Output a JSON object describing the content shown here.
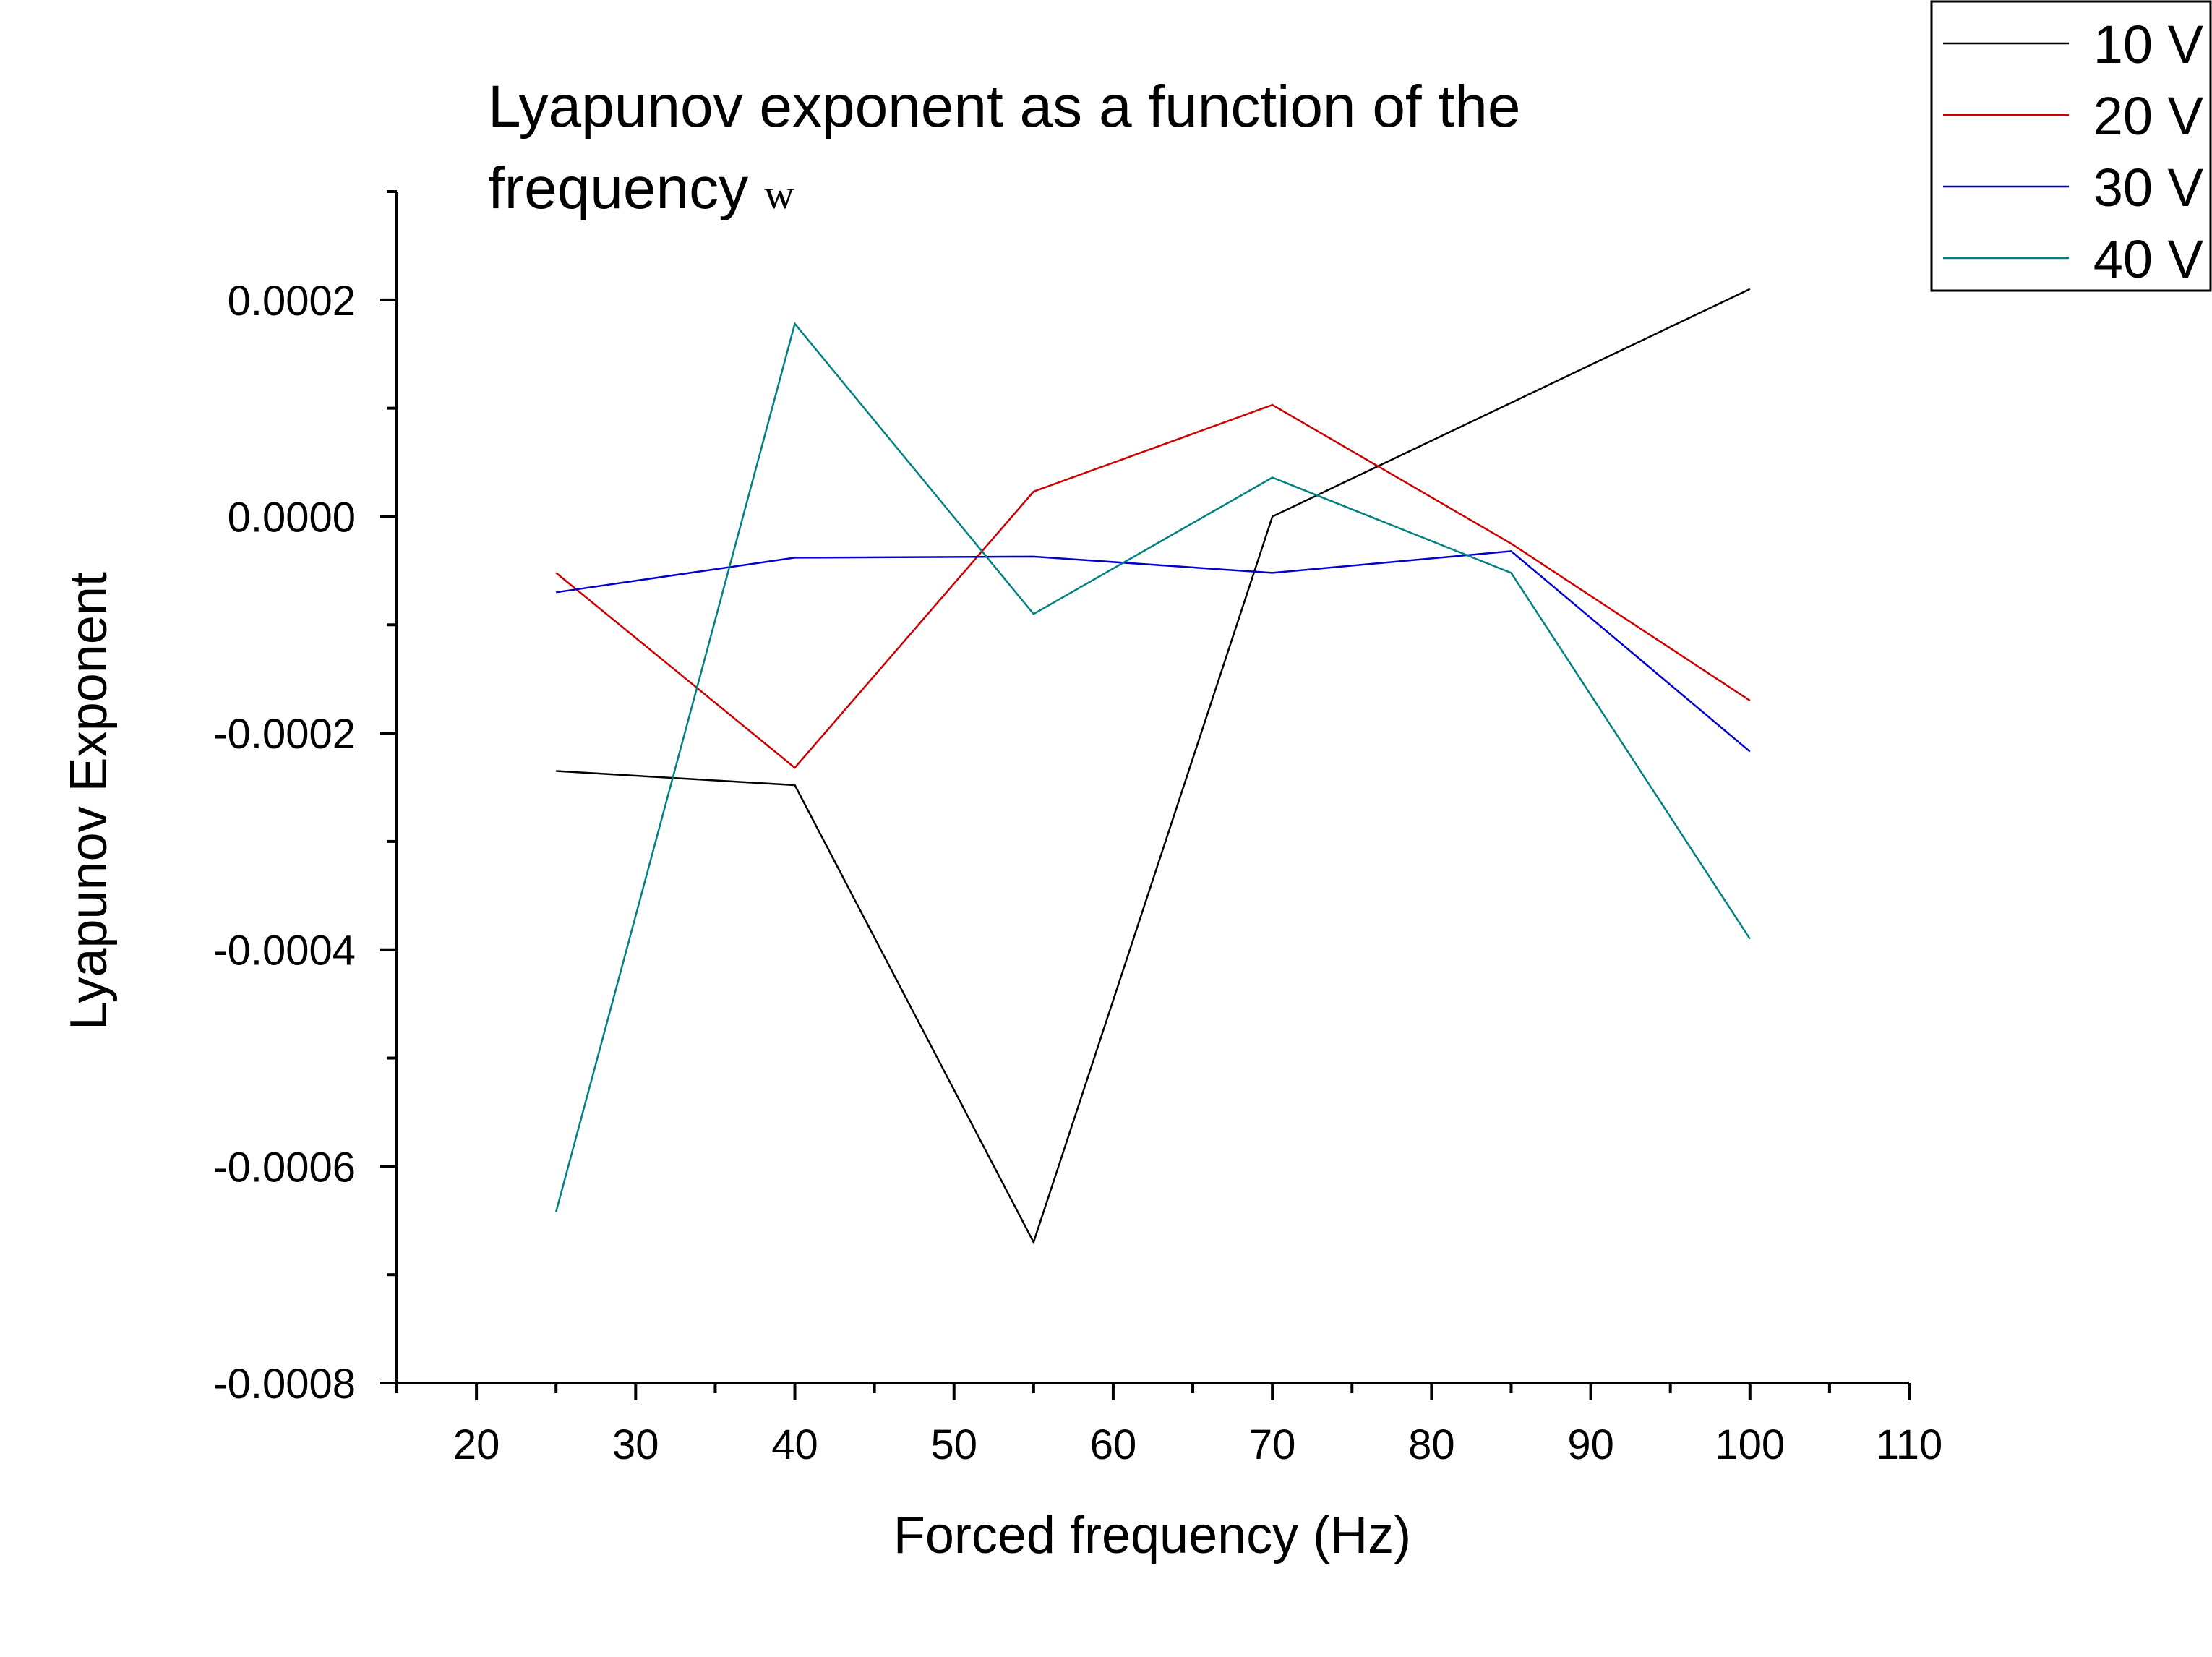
{
  "chart_data": {
    "type": "line",
    "title": "Lyapunov exponent as a function of the",
    "title_line2": "frequency",
    "title_symbol": "w",
    "xlabel": "Forced frequency (Hz)",
    "ylabel": "Lyapunov Exponent",
    "xlim": [
      15,
      110
    ],
    "ylim": [
      -0.0008,
      0.0003
    ],
    "x_ticks": [
      20,
      30,
      40,
      50,
      60,
      70,
      80,
      90,
      100,
      110
    ],
    "x_tick_labels": [
      "20",
      "30",
      "40",
      "50",
      "60",
      "70",
      "80",
      "90",
      "100",
      "110"
    ],
    "y_ticks": [
      0.0002,
      0.0,
      -0.0002,
      -0.0004,
      -0.0006,
      -0.0008
    ],
    "y_tick_labels": [
      "0.0002",
      "0.0000",
      "-0.0002",
      "-0.0004",
      "-0.0006",
      "-0.0008"
    ],
    "grid": false,
    "legend_position": "top-right",
    "x": [
      25,
      40,
      55,
      70,
      85,
      100
    ],
    "series": [
      {
        "name": "10 V",
        "color": "#000000",
        "values": [
          -0.000235,
          -0.000248,
          -0.00067,
          0.0,
          0.000105,
          0.00021
        ]
      },
      {
        "name": "20 V",
        "color": "#cc0000",
        "values": [
          -5.2e-05,
          -0.000232,
          2.3e-05,
          0.000103,
          -2.5e-05,
          -0.00017
        ]
      },
      {
        "name": "30 V",
        "color": "#0000cc",
        "values": [
          -7e-05,
          -3.8e-05,
          -3.7e-05,
          -5.2e-05,
          -3.2e-05,
          -0.000217
        ]
      },
      {
        "name": "40 V",
        "color": "#008080",
        "values": [
          -0.000642,
          0.000178,
          -9e-05,
          3.6e-05,
          -5.2e-05,
          -0.00039
        ]
      }
    ]
  }
}
